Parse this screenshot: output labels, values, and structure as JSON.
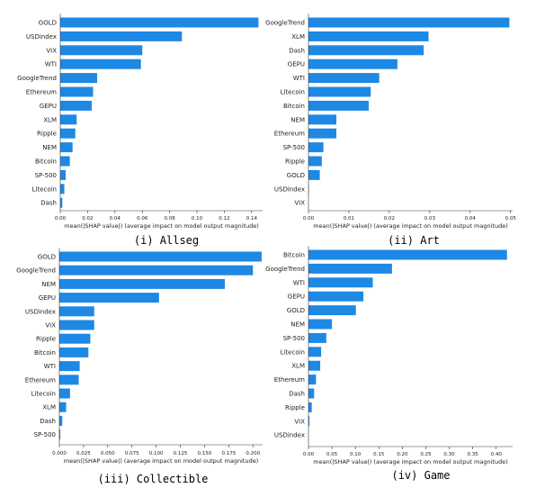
{
  "bar_color": "#1e88e5",
  "axis_color": "#333333",
  "chart_data": [
    {
      "type": "bar",
      "orientation": "horizontal",
      "caption": "(i) Allseg",
      "xlabel": "mean(|SHAP value|) (average impact on model output magnitude)",
      "xlim": [
        0,
        0.148
      ],
      "xticks": [
        "0.00",
        "0.02",
        "0.04",
        "0.06",
        "0.08",
        "0.10",
        "0.12",
        "0.14"
      ],
      "xtick_values": [
        0,
        0.02,
        0.04,
        0.06,
        0.08,
        0.1,
        0.12,
        0.14
      ],
      "categories": [
        "GOLD",
        "USDindex",
        "VIX",
        "WTI",
        "GoogleTrend",
        "Ethereum",
        "GEPU",
        "XLM",
        "Ripple",
        "NEM",
        "Bitcoin",
        "SP-500",
        "Litecoin",
        "Dash"
      ],
      "values": [
        0.145,
        0.089,
        0.06,
        0.059,
        0.027,
        0.024,
        0.023,
        0.012,
        0.011,
        0.009,
        0.007,
        0.004,
        0.003,
        0.0015
      ]
    },
    {
      "type": "bar",
      "orientation": "horizontal",
      "caption": "(ii) Art",
      "xlabel": "mean(|SHAP value|) (average impact on model output magnitude)",
      "xlim": [
        0,
        0.0505
      ],
      "xticks": [
        "0.00",
        "0.01",
        "0.02",
        "0.03",
        "0.04",
        "0.05"
      ],
      "xtick_values": [
        0,
        0.01,
        0.02,
        0.03,
        0.04,
        0.05
      ],
      "categories": [
        "GoogleTrend",
        "XLM",
        "Dash",
        "GEPU",
        "WTI",
        "Litecoin",
        "Bitcoin",
        "NEM",
        "Ethereum",
        "SP-500",
        "Ripple",
        "GOLD",
        "USDindex",
        "VIX"
      ],
      "values": [
        0.0497,
        0.0297,
        0.0285,
        0.022,
        0.0175,
        0.0154,
        0.0149,
        0.0069,
        0.0069,
        0.0037,
        0.0033,
        0.0028,
        0.0001,
        0.0
      ]
    },
    {
      "type": "bar",
      "orientation": "horizontal",
      "caption": "(iii) Collectible",
      "xlabel": "mean(|SHAP value|) (average impact on model output magnitude)",
      "xlim": [
        0,
        0.21
      ],
      "xticks": [
        "0.000",
        "0.025",
        "0.050",
        "0.075",
        "0.100",
        "0.125",
        "0.150",
        "0.175",
        "0.200"
      ],
      "xtick_values": [
        0,
        0.025,
        0.05,
        0.075,
        0.1,
        0.125,
        0.15,
        0.175,
        0.2
      ],
      "categories": [
        "GOLD",
        "GoogleTrend",
        "NEM",
        "GEPU",
        "USDindex",
        "VIX",
        "Ripple",
        "Bitcoin",
        "WTI",
        "Ethereum",
        "Litecoin",
        "XLM",
        "Dash",
        "SP-500"
      ],
      "values": [
        0.209,
        0.2,
        0.171,
        0.103,
        0.036,
        0.036,
        0.032,
        0.03,
        0.021,
        0.02,
        0.011,
        0.007,
        0.003,
        0.001
      ]
    },
    {
      "type": "bar",
      "orientation": "horizontal",
      "caption": "(iv) Game",
      "xlabel": "mean(|SHAP value|) (average impact on model output magnitude)",
      "xlim": [
        0,
        0.435
      ],
      "xticks": [
        "0.00",
        "0.05",
        "0.10",
        "0.15",
        "0.20",
        "0.25",
        "0.30",
        "0.35",
        "0.40"
      ],
      "xtick_values": [
        0,
        0.05,
        0.1,
        0.15,
        0.2,
        0.25,
        0.3,
        0.35,
        0.4
      ],
      "categories": [
        "Bitcoin",
        "GoogleTrend",
        "WTI",
        "GEPU",
        "GOLD",
        "NEM",
        "SP-500",
        "Litecoin",
        "XLM",
        "Ethereum",
        "Dash",
        "Ripple",
        "VIX",
        "USDindex"
      ],
      "values": [
        0.423,
        0.178,
        0.137,
        0.117,
        0.101,
        0.05,
        0.038,
        0.027,
        0.025,
        0.016,
        0.012,
        0.007,
        0.002,
        0.0
      ]
    }
  ]
}
